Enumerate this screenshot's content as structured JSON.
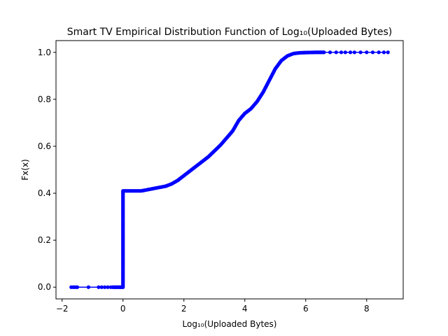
{
  "chart_data": {
    "type": "line",
    "title": "Smart TV Empirical Distribution Function of Log₁₀(Uploaded Bytes)",
    "xlabel": "Log₁₀(Uploaded Bytes)",
    "ylabel": "Fx(x)",
    "xlim": [
      -2.2,
      9.2
    ],
    "ylim": [
      -0.05,
      1.05
    ],
    "xticks": [
      -2,
      0,
      2,
      4,
      6,
      8
    ],
    "xtick_labels": [
      "−2",
      "0",
      "2",
      "4",
      "6",
      "8"
    ],
    "yticks": [
      0.0,
      0.2,
      0.4,
      0.6,
      0.8,
      1.0
    ],
    "ytick_labels": [
      "0.0",
      "0.2",
      "0.4",
      "0.6",
      "0.8",
      "1.0"
    ],
    "grid": false,
    "marker": "circle",
    "color": "#0000ff",
    "series": [
      {
        "x": [
          -1.7,
          -1.6,
          -1.5,
          -0.8,
          -0.6,
          -0.4,
          -0.3,
          -0.2,
          -0.1,
          -0.05,
          0.0,
          0.0,
          0.0,
          0.0,
          0.0,
          0.2,
          0.4,
          0.6,
          0.8,
          1.0,
          1.2,
          1.4,
          1.6,
          1.8,
          2.0,
          2.2,
          2.4,
          2.6,
          2.8,
          3.0,
          3.2,
          3.4,
          3.6,
          3.8,
          4.0,
          4.2,
          4.4,
          4.6,
          4.8,
          5.0,
          5.2,
          5.4,
          5.6,
          5.8,
          6.0,
          6.3,
          6.6,
          7.0,
          7.3,
          7.6,
          8.0,
          8.4,
          8.7
        ],
        "y": [
          0.0,
          0.0,
          0.0,
          0.0,
          0.0,
          0.0,
          0.0,
          0.0,
          0.0,
          0.0,
          0.0,
          0.1,
          0.2,
          0.3,
          0.41,
          0.41,
          0.41,
          0.41,
          0.415,
          0.42,
          0.425,
          0.43,
          0.44,
          0.455,
          0.475,
          0.495,
          0.515,
          0.535,
          0.555,
          0.58,
          0.605,
          0.635,
          0.665,
          0.71,
          0.74,
          0.76,
          0.79,
          0.83,
          0.88,
          0.93,
          0.965,
          0.985,
          0.995,
          0.998,
          0.999,
          1.0,
          1.0,
          1.0,
          1.0,
          1.0,
          1.0,
          1.0,
          1.0
        ]
      }
    ]
  }
}
